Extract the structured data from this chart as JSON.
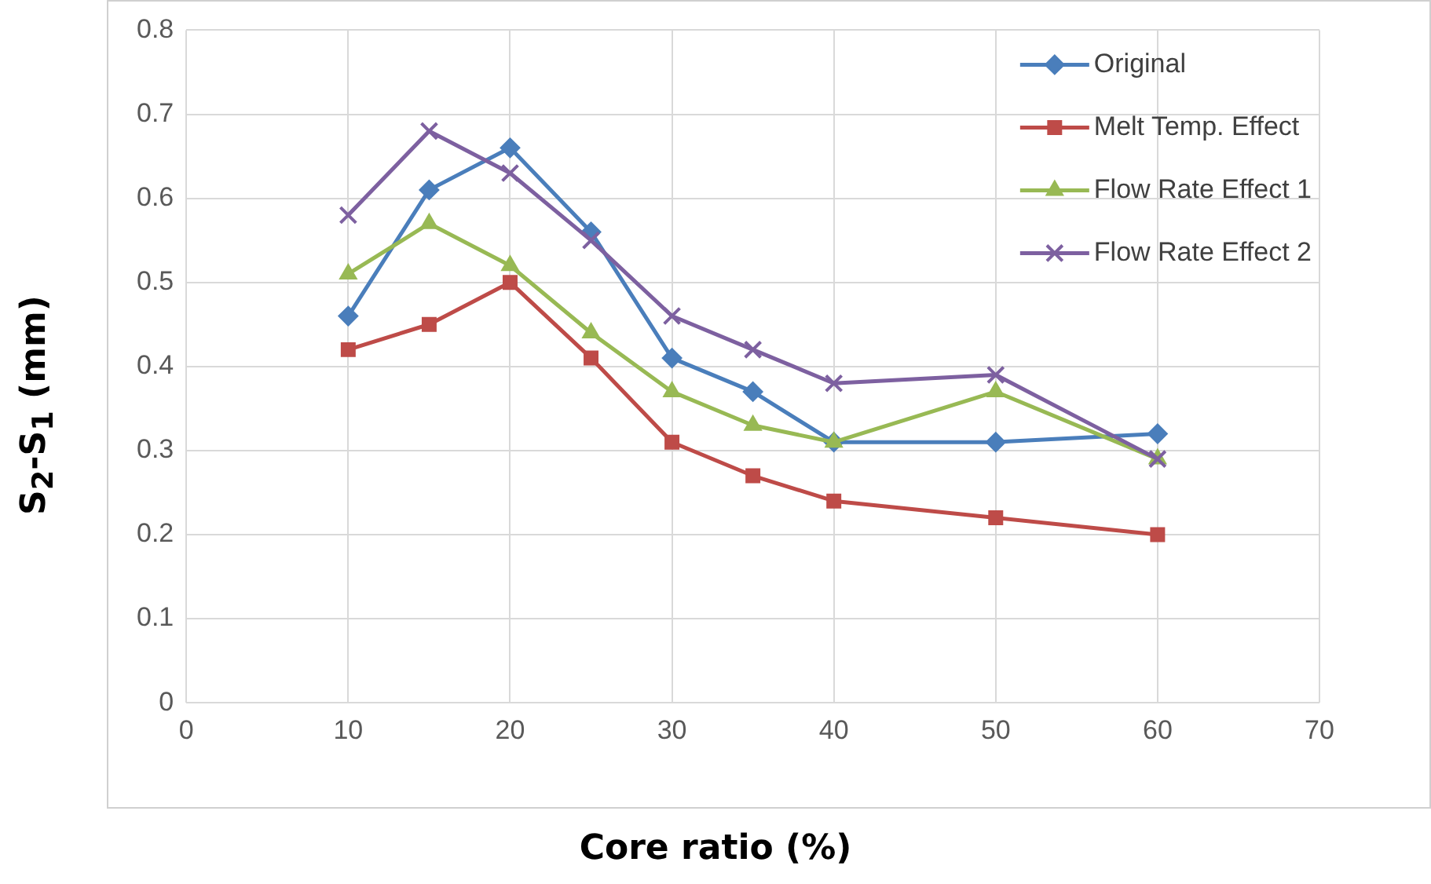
{
  "chart_data": {
    "type": "line",
    "xlabel": "Core ratio (%)",
    "ylabel": "S$_{2}$-S$_{1}$ (mm)",
    "x": [
      10,
      15,
      20,
      25,
      30,
      35,
      40,
      50,
      60
    ],
    "series": [
      {
        "name": "Original",
        "color": "#4a7ebb",
        "marker": "diamond",
        "values": [
          0.46,
          0.61,
          0.66,
          0.56,
          0.41,
          0.37,
          0.31,
          0.31,
          0.32
        ]
      },
      {
        "name": "Melt Temp. Effect",
        "color": "#be4b48",
        "marker": "square",
        "values": [
          0.42,
          0.45,
          0.5,
          0.41,
          0.31,
          0.27,
          0.24,
          0.22,
          0.2
        ]
      },
      {
        "name": "Flow Rate Effect 1",
        "color": "#98b954",
        "marker": "triangle",
        "values": [
          0.51,
          0.57,
          0.52,
          0.44,
          0.37,
          0.33,
          0.31,
          0.37,
          0.29
        ]
      },
      {
        "name": "Flow Rate Effect 2",
        "color": "#7d60a0",
        "marker": "cross",
        "values": [
          0.58,
          0.68,
          0.63,
          0.55,
          0.46,
          0.42,
          0.38,
          0.39,
          0.29
        ]
      }
    ],
    "xlim": [
      0,
      70
    ],
    "xticks": [
      0,
      10,
      20,
      30,
      40,
      50,
      60,
      70
    ],
    "ylim": [
      0,
      0.8
    ],
    "yticks": [
      0,
      0.1,
      0.2,
      0.3,
      0.4,
      0.5,
      0.6,
      0.7,
      0.8
    ],
    "grid": true,
    "legend": "top right",
    "line_style": "solid"
  }
}
